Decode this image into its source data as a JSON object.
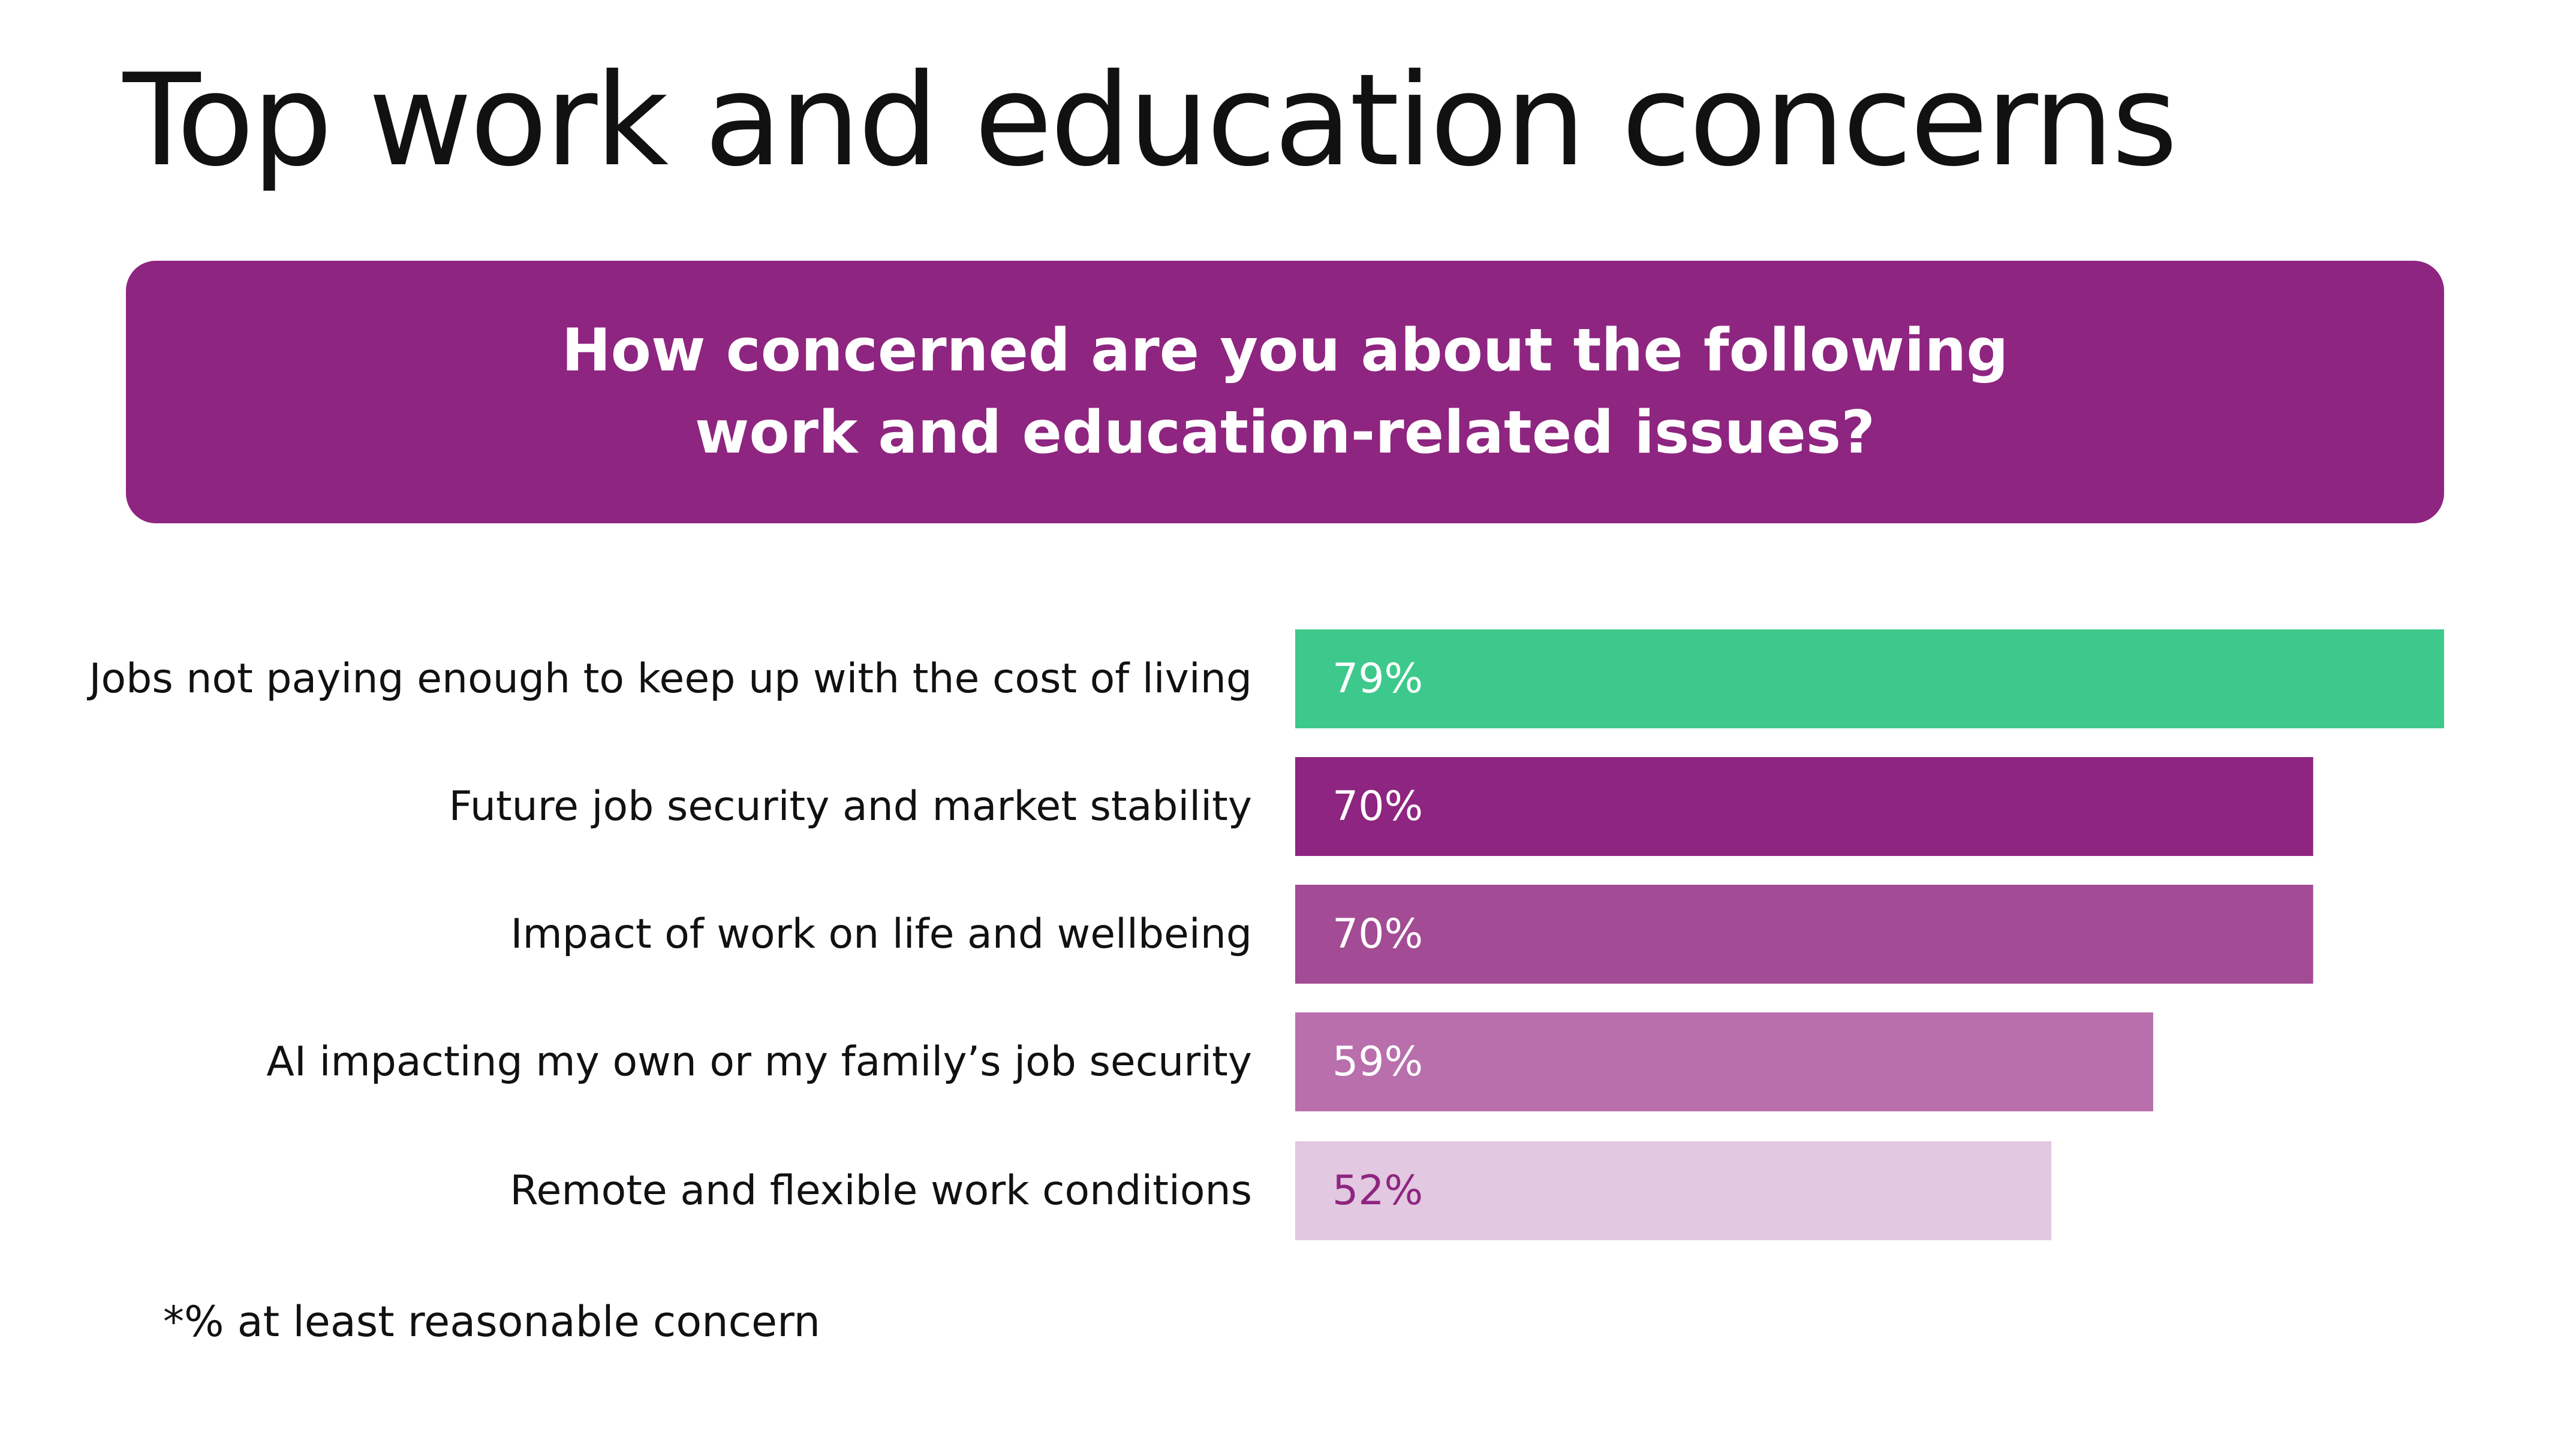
{
  "title": "Top work and education concerns",
  "question": {
    "line1": "How concerned are you about the following",
    "line2": "work and education-related issues?"
  },
  "footnote": "*% at least reasonable concern",
  "colors": {
    "banner": "#8e2580",
    "bars": [
      "#3ec98c",
      "#8e2580",
      "#a34b94",
      "#b96fac",
      "#e2c8e0"
    ],
    "value_labels": [
      "#ffffff",
      "#ffffff",
      "#ffffff",
      "#ffffff",
      "#8e2580"
    ]
  },
  "chart_data": {
    "type": "bar",
    "orientation": "horizontal",
    "categories": [
      "Jobs not paying enough to keep up with the cost of living",
      "Future job security and market stability",
      "Impact of work on life and wellbeing",
      "AI impacting my own or my family’s job security",
      "Remote and flexible work conditions"
    ],
    "values": [
      79,
      70,
      70,
      59,
      52
    ],
    "value_labels": [
      "79%",
      "70%",
      "70%",
      "59%",
      "52%"
    ],
    "unit": "%",
    "xlim": [
      0,
      79
    ],
    "grid": false,
    "legend": "none"
  }
}
